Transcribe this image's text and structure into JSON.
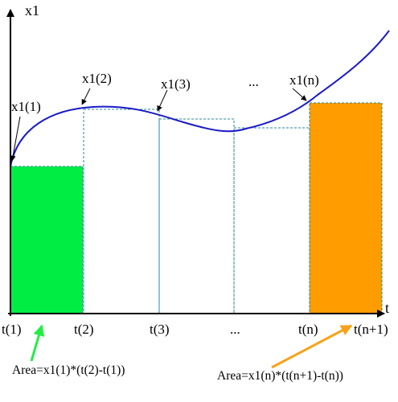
{
  "axes": {
    "y_title": "x1",
    "x_title": "t"
  },
  "t_labels": [
    "t(1)",
    "t(2)",
    "t(3)",
    "...",
    "t(n)",
    "t(n+1)"
  ],
  "point_labels": [
    "x1(1)",
    "x1(2)",
    "x1(3)",
    "...",
    "x1(n)"
  ],
  "formulas": {
    "first": "Area=x1(1)*(t(2)-t(1))",
    "last": "Area=x1(n)*(t(n+1)-t(n))"
  },
  "colors": {
    "curve": "#1a1ac8",
    "first_area": "#00ee44",
    "last_area": "#ff9c00",
    "step_lines": "#2a8a9a",
    "first_arrow": "#22ee44",
    "last_arrow": "#f7a21a"
  }
}
